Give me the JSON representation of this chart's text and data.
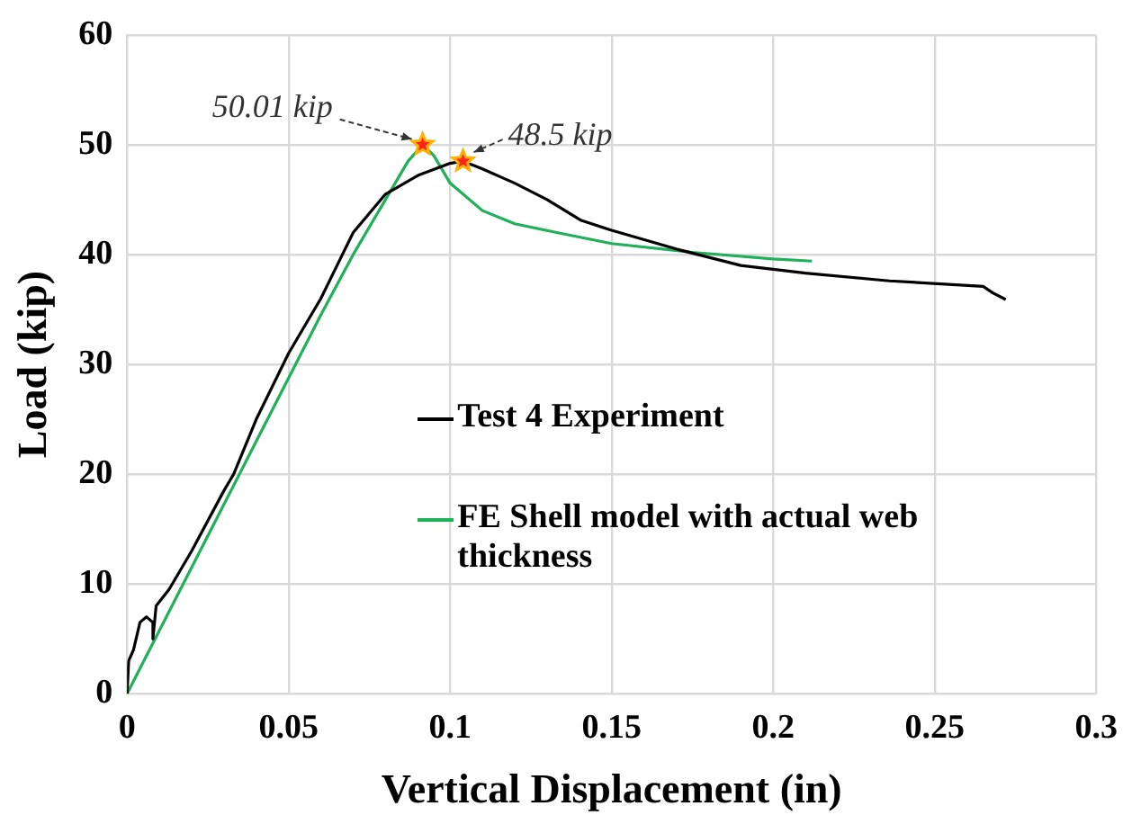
{
  "chart_data": {
    "type": "line",
    "xlabel": "Vertical Displacement (in)",
    "ylabel": "Load (kip)",
    "xlim": [
      0,
      0.3
    ],
    "xticks": [
      0,
      0.05,
      0.1,
      0.15,
      0.2,
      0.25,
      0.3
    ],
    "ylim": [
      0,
      60
    ],
    "yticks": [
      0,
      10,
      20,
      30,
      40,
      50,
      60
    ],
    "grid": true,
    "legend": "right",
    "marker": "none",
    "line_style": "solid",
    "annotations": [
      {
        "text": "50.01 kip",
        "x": 0.0915,
        "y": 50.01
      },
      {
        "text": "48.5 kip",
        "x": 0.104,
        "y": 48.5
      }
    ],
    "series": [
      {
        "name": "Test 4 Experiment",
        "color": "#000000",
        "x": [
          0,
          0.0005,
          0.002,
          0.004,
          0.006,
          0.008,
          0.008,
          0.009,
          0.013,
          0.02,
          0.03,
          0.033,
          0.04,
          0.05,
          0.06,
          0.065,
          0.07,
          0.08,
          0.09,
          0.1,
          0.104,
          0.11,
          0.12,
          0.13,
          0.1406,
          0.15,
          0.17,
          0.19,
          0.21,
          0.236,
          0.265,
          0.268,
          0.272
        ],
        "values": [
          0,
          3,
          4,
          6.5,
          7,
          6.5,
          5,
          8,
          9.5,
          13,
          18.5,
          20,
          25,
          31,
          36,
          39,
          42,
          45.5,
          47.2,
          48.3,
          48.5,
          47.8,
          46.5,
          45,
          43.1,
          42.2,
          40.5,
          39,
          38.3,
          37.6,
          37.1,
          36.5,
          35.9
        ]
      },
      {
        "name": "FE Shell model with actual web thickness",
        "color": "#1fb15a",
        "x": [
          0,
          0.02,
          0.04,
          0.06,
          0.07,
          0.08,
          0.087,
          0.0915,
          0.095,
          0.1,
          0.11,
          0.12,
          0.133,
          0.15,
          0.175,
          0.2,
          0.212
        ],
        "values": [
          0,
          11.5,
          23,
          34.5,
          40,
          45,
          48.5,
          50.01,
          49,
          46.5,
          44,
          42.8,
          42,
          41,
          40.2,
          39.6,
          39.4
        ]
      }
    ]
  }
}
